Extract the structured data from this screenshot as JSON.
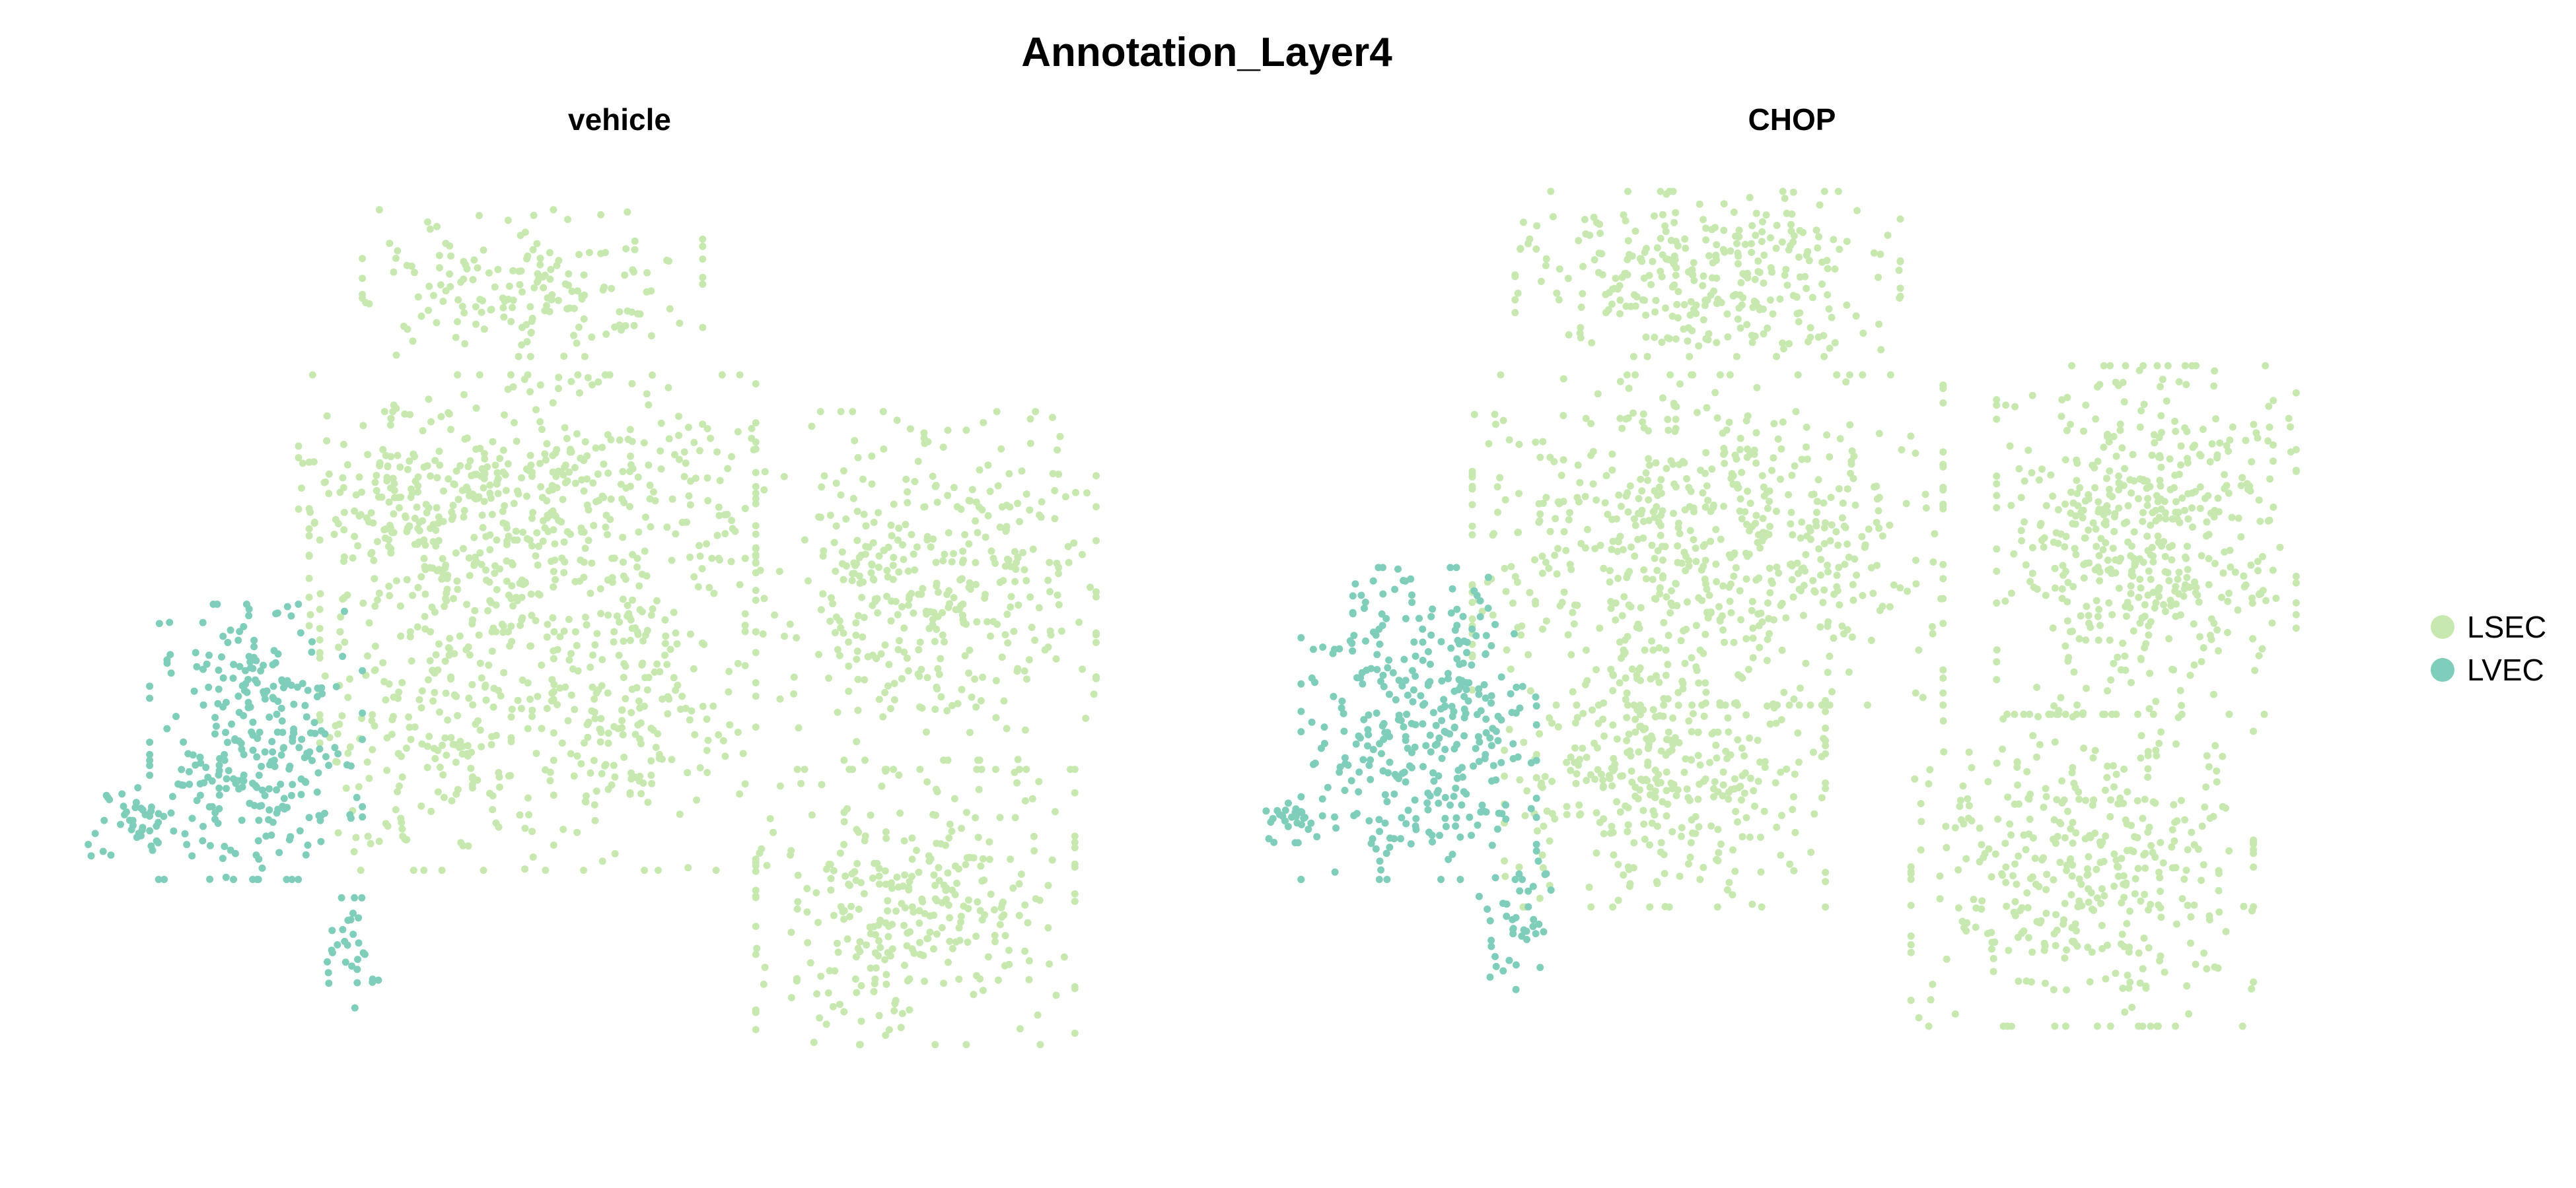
{
  "chart_data": {
    "type": "scatter",
    "title": "Annotation_Layer4",
    "xlabel": "",
    "ylabel": "",
    "axes_shown": false,
    "grid": false,
    "legend_position": "right",
    "legend": [
      {
        "label": "LSEC",
        "color": "#c7e9b0"
      },
      {
        "label": "LVEC",
        "color": "#7fcdbb"
      }
    ],
    "panels": [
      {
        "title": "vehicle",
        "series": [
          {
            "name": "LSEC",
            "color": "#c7e9b0",
            "regions": [
              {
                "cx": 0.42,
                "cy": 0.1,
                "rx": 0.16,
                "ry": 0.08,
                "n": 180
              },
              {
                "cx": 0.42,
                "cy": 0.34,
                "rx": 0.21,
                "ry": 0.14,
                "n": 480
              },
              {
                "cx": 0.33,
                "cy": 0.56,
                "rx": 0.11,
                "ry": 0.18,
                "n": 260
              },
              {
                "cx": 0.51,
                "cy": 0.57,
                "rx": 0.11,
                "ry": 0.17,
                "n": 240
              },
              {
                "cx": 0.79,
                "cy": 0.43,
                "rx": 0.16,
                "ry": 0.19,
                "n": 420
              },
              {
                "cx": 0.78,
                "cy": 0.78,
                "rx": 0.15,
                "ry": 0.15,
                "n": 340
              },
              {
                "cx": 0.29,
                "cy": 0.34,
                "rx": 0.09,
                "ry": 0.1,
                "n": 90
              }
            ]
          },
          {
            "name": "LVEC",
            "color": "#7fcdbb",
            "regions": [
              {
                "cx": 0.16,
                "cy": 0.6,
                "rx": 0.1,
                "ry": 0.15,
                "n": 300
              },
              {
                "cx": 0.05,
                "cy": 0.69,
                "rx": 0.05,
                "ry": 0.04,
                "n": 40
              },
              {
                "cx": 0.25,
                "cy": 0.83,
                "rx": 0.03,
                "ry": 0.06,
                "n": 30
              }
            ]
          }
        ]
      },
      {
        "title": "CHOP",
        "series": [
          {
            "name": "LSEC",
            "color": "#c7e9b0",
            "regions": [
              {
                "cx": 0.42,
                "cy": 0.09,
                "rx": 0.18,
                "ry": 0.09,
                "n": 320
              },
              {
                "cx": 0.42,
                "cy": 0.38,
                "rx": 0.22,
                "ry": 0.18,
                "n": 650
              },
              {
                "cx": 0.38,
                "cy": 0.64,
                "rx": 0.15,
                "ry": 0.14,
                "n": 380
              },
              {
                "cx": 0.83,
                "cy": 0.38,
                "rx": 0.14,
                "ry": 0.19,
                "n": 520
              },
              {
                "cx": 0.77,
                "cy": 0.74,
                "rx": 0.16,
                "ry": 0.17,
                "n": 420
              }
            ]
          },
          {
            "name": "LVEC",
            "color": "#7fcdbb",
            "regions": [
              {
                "cx": 0.15,
                "cy": 0.58,
                "rx": 0.11,
                "ry": 0.17,
                "n": 360
              },
              {
                "cx": 0.03,
                "cy": 0.68,
                "rx": 0.03,
                "ry": 0.03,
                "n": 30
              },
              {
                "cx": 0.24,
                "cy": 0.8,
                "rx": 0.04,
                "ry": 0.07,
                "n": 40
              }
            ]
          }
        ]
      }
    ]
  }
}
